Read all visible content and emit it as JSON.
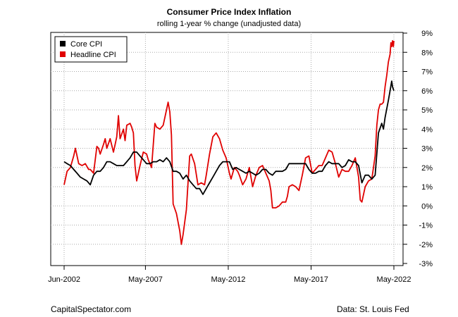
{
  "header": {
    "title": "Consumer Price Index Inflation",
    "subtitle": "rolling 1-year % change (unadjusted data)"
  },
  "footer": {
    "source_left": "CapitalSpectator.com",
    "source_right": "Data: St. Louis Fed"
  },
  "colors": {
    "core": "#000000",
    "headline": "#e00000",
    "grid": "#aaaaaa"
  },
  "chart_data": {
    "type": "line",
    "title": "Consumer Price Index Inflation",
    "subtitle": "rolling 1-year % change (unadjusted data)",
    "x_ticks": [
      {
        "label": "Jun-2002",
        "x": 2002.42
      },
      {
        "label": "May-2007",
        "x": 2007.33
      },
      {
        "label": "May-2012",
        "x": 2012.33
      },
      {
        "label": "May-2017",
        "x": 2017.33
      },
      {
        "label": "May-2022",
        "x": 2022.33
      }
    ],
    "xlim": [
      2002.42,
      2022.33
    ],
    "ylim": [
      -3,
      9
    ],
    "y_ticks": [
      "-3%",
      "-2%",
      "-1%",
      "0%",
      "1%",
      "2%",
      "3%",
      "4%",
      "5%",
      "6%",
      "7%",
      "8%",
      "9%"
    ],
    "grid": true,
    "legend": "top-left",
    "series": [
      {
        "name": "Core CPI",
        "color": "#000000",
        "points": [
          [
            2002.42,
            2.3
          ],
          [
            2002.6,
            2.2
          ],
          [
            2002.8,
            2.1
          ],
          [
            2003.0,
            1.9
          ],
          [
            2003.2,
            1.7
          ],
          [
            2003.4,
            1.5
          ],
          [
            2003.6,
            1.4
          ],
          [
            2003.8,
            1.3
          ],
          [
            2004.0,
            1.1
          ],
          [
            2004.2,
            1.6
          ],
          [
            2004.4,
            1.8
          ],
          [
            2004.6,
            1.8
          ],
          [
            2004.8,
            2.0
          ],
          [
            2005.0,
            2.3
          ],
          [
            2005.2,
            2.3
          ],
          [
            2005.4,
            2.2
          ],
          [
            2005.6,
            2.1
          ],
          [
            2005.8,
            2.1
          ],
          [
            2006.0,
            2.1
          ],
          [
            2006.2,
            2.3
          ],
          [
            2006.4,
            2.5
          ],
          [
            2006.6,
            2.8
          ],
          [
            2006.8,
            2.8
          ],
          [
            2007.0,
            2.6
          ],
          [
            2007.2,
            2.4
          ],
          [
            2007.4,
            2.2
          ],
          [
            2007.6,
            2.2
          ],
          [
            2007.8,
            2.3
          ],
          [
            2008.0,
            2.3
          ],
          [
            2008.2,
            2.4
          ],
          [
            2008.4,
            2.3
          ],
          [
            2008.6,
            2.5
          ],
          [
            2008.8,
            2.3
          ],
          [
            2009.0,
            1.8
          ],
          [
            2009.2,
            1.8
          ],
          [
            2009.4,
            1.7
          ],
          [
            2009.6,
            1.4
          ],
          [
            2009.8,
            1.6
          ],
          [
            2010.0,
            1.3
          ],
          [
            2010.2,
            1.1
          ],
          [
            2010.4,
            0.9
          ],
          [
            2010.6,
            0.9
          ],
          [
            2010.8,
            0.6
          ],
          [
            2011.0,
            0.9
          ],
          [
            2011.2,
            1.2
          ],
          [
            2011.4,
            1.5
          ],
          [
            2011.6,
            1.8
          ],
          [
            2011.8,
            2.1
          ],
          [
            2012.0,
            2.3
          ],
          [
            2012.2,
            2.3
          ],
          [
            2012.4,
            2.3
          ],
          [
            2012.6,
            1.9
          ],
          [
            2012.8,
            2.0
          ],
          [
            2013.0,
            1.9
          ],
          [
            2013.2,
            1.8
          ],
          [
            2013.4,
            1.7
          ],
          [
            2013.6,
            1.8
          ],
          [
            2013.8,
            1.7
          ],
          [
            2014.0,
            1.6
          ],
          [
            2014.2,
            1.7
          ],
          [
            2014.4,
            1.9
          ],
          [
            2014.6,
            1.9
          ],
          [
            2014.8,
            1.7
          ],
          [
            2015.0,
            1.6
          ],
          [
            2015.2,
            1.8
          ],
          [
            2015.4,
            1.8
          ],
          [
            2015.6,
            1.8
          ],
          [
            2015.8,
            1.9
          ],
          [
            2016.0,
            2.2
          ],
          [
            2016.2,
            2.2
          ],
          [
            2016.4,
            2.2
          ],
          [
            2016.6,
            2.2
          ],
          [
            2016.8,
            2.2
          ],
          [
            2017.0,
            2.2
          ],
          [
            2017.2,
            1.9
          ],
          [
            2017.4,
            1.7
          ],
          [
            2017.6,
            1.7
          ],
          [
            2017.8,
            1.8
          ],
          [
            2018.0,
            1.8
          ],
          [
            2018.2,
            2.1
          ],
          [
            2018.4,
            2.3
          ],
          [
            2018.6,
            2.2
          ],
          [
            2018.8,
            2.2
          ],
          [
            2019.0,
            2.2
          ],
          [
            2019.2,
            2.0
          ],
          [
            2019.4,
            2.1
          ],
          [
            2019.6,
            2.4
          ],
          [
            2019.8,
            2.3
          ],
          [
            2020.0,
            2.3
          ],
          [
            2020.2,
            2.1
          ],
          [
            2020.4,
            1.2
          ],
          [
            2020.6,
            1.6
          ],
          [
            2020.8,
            1.6
          ],
          [
            2021.0,
            1.4
          ],
          [
            2021.2,
            1.6
          ],
          [
            2021.4,
            3.8
          ],
          [
            2021.6,
            4.3
          ],
          [
            2021.7,
            4.0
          ],
          [
            2021.8,
            4.6
          ],
          [
            2022.0,
            5.5
          ],
          [
            2022.1,
            6.0
          ],
          [
            2022.2,
            6.5
          ],
          [
            2022.25,
            6.2
          ],
          [
            2022.33,
            6.0
          ]
        ]
      },
      {
        "name": "Headline CPI",
        "color": "#e00000",
        "points": [
          [
            2002.42,
            1.1
          ],
          [
            2002.6,
            1.8
          ],
          [
            2002.8,
            2.0
          ],
          [
            2003.0,
            2.6
          ],
          [
            2003.1,
            3.0
          ],
          [
            2003.3,
            2.2
          ],
          [
            2003.5,
            2.1
          ],
          [
            2003.7,
            2.2
          ],
          [
            2003.9,
            1.9
          ],
          [
            2004.0,
            1.9
          ],
          [
            2004.2,
            1.7
          ],
          [
            2004.4,
            3.1
          ],
          [
            2004.5,
            3.0
          ],
          [
            2004.6,
            2.7
          ],
          [
            2004.8,
            3.2
          ],
          [
            2004.9,
            3.5
          ],
          [
            2005.0,
            3.0
          ],
          [
            2005.2,
            3.5
          ],
          [
            2005.4,
            2.8
          ],
          [
            2005.5,
            3.2
          ],
          [
            2005.6,
            3.6
          ],
          [
            2005.7,
            4.7
          ],
          [
            2005.8,
            3.5
          ],
          [
            2006.0,
            4.0
          ],
          [
            2006.1,
            3.4
          ],
          [
            2006.2,
            4.2
          ],
          [
            2006.4,
            4.3
          ],
          [
            2006.5,
            4.1
          ],
          [
            2006.6,
            3.8
          ],
          [
            2006.7,
            2.1
          ],
          [
            2006.8,
            1.3
          ],
          [
            2007.0,
            2.1
          ],
          [
            2007.2,
            2.8
          ],
          [
            2007.4,
            2.7
          ],
          [
            2007.5,
            2.4
          ],
          [
            2007.7,
            2.0
          ],
          [
            2007.9,
            4.3
          ],
          [
            2008.0,
            4.1
          ],
          [
            2008.2,
            4.0
          ],
          [
            2008.4,
            4.2
          ],
          [
            2008.6,
            5.0
          ],
          [
            2008.7,
            5.4
          ],
          [
            2008.8,
            4.9
          ],
          [
            2008.9,
            3.7
          ],
          [
            2009.0,
            0.1
          ],
          [
            2009.2,
            -0.4
          ],
          [
            2009.4,
            -1.3
          ],
          [
            2009.5,
            -2.0
          ],
          [
            2009.6,
            -1.5
          ],
          [
            2009.8,
            -0.2
          ],
          [
            2010.0,
            2.6
          ],
          [
            2010.1,
            2.7
          ],
          [
            2010.3,
            2.2
          ],
          [
            2010.5,
            1.1
          ],
          [
            2010.7,
            1.2
          ],
          [
            2010.9,
            1.1
          ],
          [
            2011.0,
            1.6
          ],
          [
            2011.2,
            2.7
          ],
          [
            2011.4,
            3.6
          ],
          [
            2011.6,
            3.8
          ],
          [
            2011.8,
            3.5
          ],
          [
            2012.0,
            2.9
          ],
          [
            2012.2,
            2.5
          ],
          [
            2012.4,
            1.7
          ],
          [
            2012.5,
            1.4
          ],
          [
            2012.7,
            2.0
          ],
          [
            2012.9,
            1.8
          ],
          [
            2013.0,
            1.6
          ],
          [
            2013.2,
            1.1
          ],
          [
            2013.4,
            1.4
          ],
          [
            2013.6,
            2.0
          ],
          [
            2013.8,
            1.0
          ],
          [
            2014.0,
            1.6
          ],
          [
            2014.2,
            2.0
          ],
          [
            2014.4,
            2.1
          ],
          [
            2014.6,
            1.7
          ],
          [
            2014.8,
            1.3
          ],
          [
            2014.9,
            0.8
          ],
          [
            2015.0,
            -0.1
          ],
          [
            2015.2,
            -0.1
          ],
          [
            2015.4,
            0.0
          ],
          [
            2015.6,
            0.2
          ],
          [
            2015.8,
            0.2
          ],
          [
            2015.9,
            0.5
          ],
          [
            2016.0,
            1.0
          ],
          [
            2016.2,
            1.1
          ],
          [
            2016.4,
            1.0
          ],
          [
            2016.6,
            0.8
          ],
          [
            2016.8,
            1.6
          ],
          [
            2017.0,
            2.5
          ],
          [
            2017.2,
            2.6
          ],
          [
            2017.4,
            1.7
          ],
          [
            2017.6,
            1.9
          ],
          [
            2017.8,
            2.1
          ],
          [
            2018.0,
            2.1
          ],
          [
            2018.2,
            2.5
          ],
          [
            2018.4,
            2.9
          ],
          [
            2018.6,
            2.8
          ],
          [
            2018.8,
            2.2
          ],
          [
            2019.0,
            1.5
          ],
          [
            2019.2,
            1.9
          ],
          [
            2019.4,
            1.8
          ],
          [
            2019.6,
            1.8
          ],
          [
            2019.8,
            2.1
          ],
          [
            2020.0,
            2.5
          ],
          [
            2020.2,
            1.5
          ],
          [
            2020.3,
            0.3
          ],
          [
            2020.4,
            0.2
          ],
          [
            2020.6,
            1.0
          ],
          [
            2020.8,
            1.3
          ],
          [
            2021.0,
            1.4
          ],
          [
            2021.2,
            2.6
          ],
          [
            2021.3,
            4.2
          ],
          [
            2021.4,
            5.0
          ],
          [
            2021.5,
            5.3
          ],
          [
            2021.6,
            5.3
          ],
          [
            2021.7,
            5.4
          ],
          [
            2021.8,
            6.2
          ],
          [
            2021.9,
            6.8
          ],
          [
            2022.0,
            7.5
          ],
          [
            2022.1,
            7.9
          ],
          [
            2022.15,
            8.5
          ],
          [
            2022.2,
            8.3
          ],
          [
            2022.25,
            8.6
          ],
          [
            2022.3,
            8.3
          ],
          [
            2022.33,
            8.6
          ]
        ]
      }
    ]
  }
}
